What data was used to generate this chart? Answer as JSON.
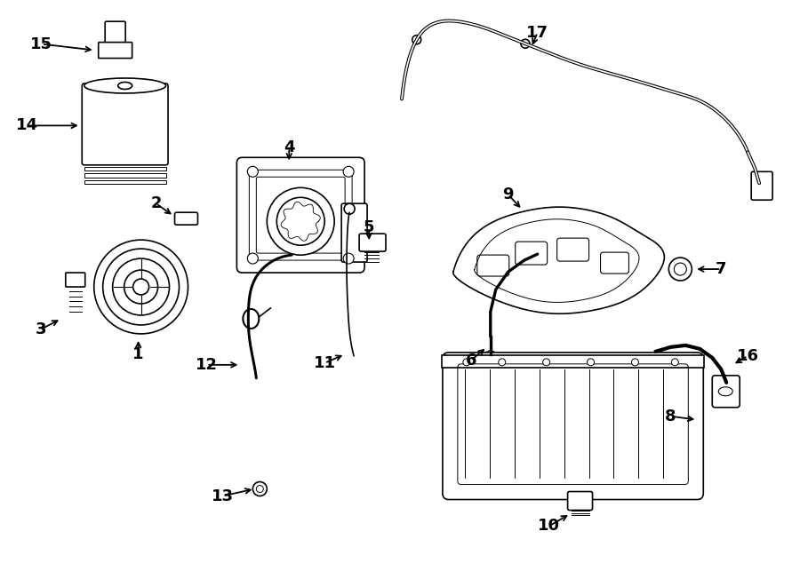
{
  "bg_color": "#ffffff",
  "line_color": "#000000",
  "fig_width": 9.0,
  "fig_height": 6.61,
  "labels": {
    "1": [
      1.55,
      2.62,
      1.55,
      2.8
    ],
    "2": [
      1.75,
      4.32,
      1.95,
      4.18
    ],
    "3": [
      0.45,
      2.9,
      0.68,
      3.02
    ],
    "4": [
      3.25,
      4.95,
      3.25,
      4.78
    ],
    "5": [
      4.15,
      4.05,
      4.15,
      3.88
    ],
    "6": [
      5.3,
      2.55,
      5.48,
      2.7
    ],
    "7": [
      8.12,
      3.58,
      7.82,
      3.58
    ],
    "8": [
      7.55,
      1.92,
      7.85,
      1.88
    ],
    "9": [
      5.72,
      4.42,
      5.88,
      4.25
    ],
    "10": [
      6.18,
      0.68,
      6.42,
      0.82
    ],
    "11": [
      3.65,
      2.52,
      3.88,
      2.62
    ],
    "12": [
      2.32,
      2.5,
      2.7,
      2.5
    ],
    "13": [
      2.5,
      1.02,
      2.86,
      1.1
    ],
    "14": [
      0.3,
      5.2,
      0.9,
      5.2
    ],
    "15": [
      0.46,
      6.12,
      1.06,
      6.05
    ],
    "16": [
      8.42,
      2.6,
      8.25,
      2.5
    ],
    "17": [
      6.05,
      6.25,
      5.98,
      6.08
    ]
  }
}
